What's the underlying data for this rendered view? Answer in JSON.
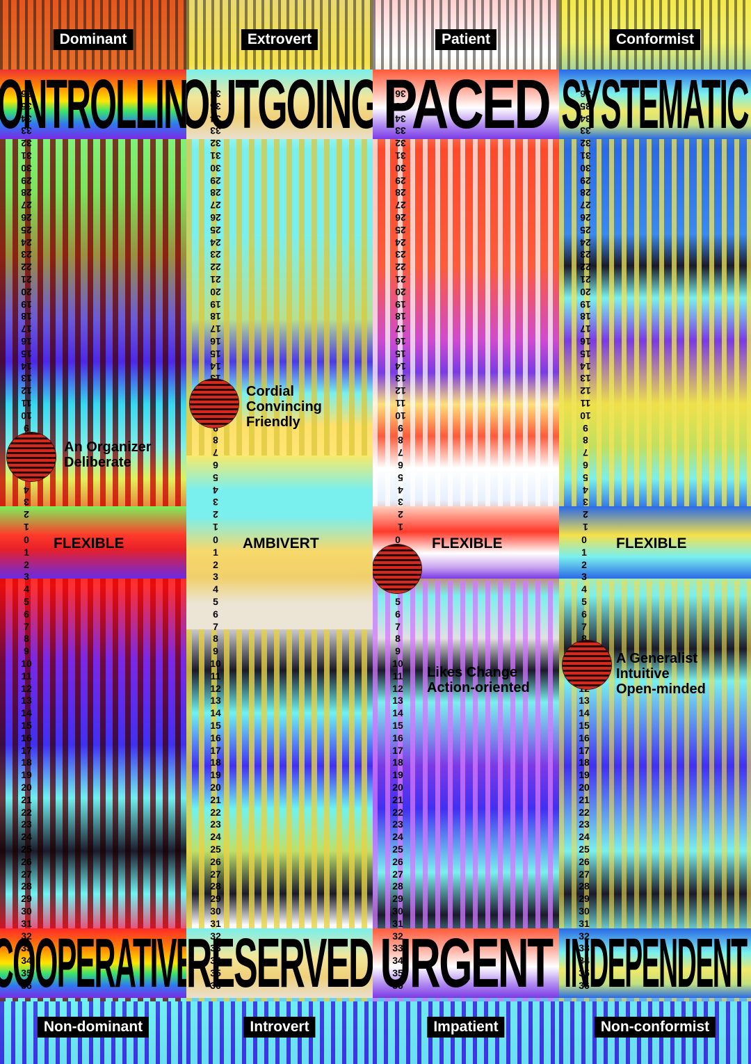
{
  "columns": [
    {
      "top_trait": "Dominant",
      "top_word": "CONTROLLING",
      "middle_label": "FLEXIBLE",
      "bottom_word": "COOPERATIVE",
      "bottom_trait": "Non-dominant",
      "notes": [
        "An Organizer",
        "Deliberate"
      ]
    },
    {
      "top_trait": "Extrovert",
      "top_word": "OUTGOING",
      "middle_label": "AMBIVERT",
      "bottom_word": "RESERVED",
      "bottom_trait": "Introvert",
      "notes": [
        "Cordial",
        "Convincing",
        "Friendly"
      ]
    },
    {
      "top_trait": "Patient",
      "top_word": "PACED",
      "middle_label": "FLEXIBLE",
      "bottom_word": "URGENT",
      "bottom_trait": "Impatient",
      "notes": [
        "Likes Change",
        "Action-oriented"
      ]
    },
    {
      "top_trait": "Conformist",
      "top_word": "SYSTEMATIC",
      "middle_label": "FLEXIBLE",
      "bottom_word": "INDEPENDENT",
      "bottom_trait": "Non-conformist",
      "notes": [
        "A Generalist",
        "Intuitive",
        "Open-minded"
      ]
    }
  ],
  "scale": {
    "upper_max": 36,
    "lower_max": 36
  },
  "marker_positions": [
    {
      "column": 0,
      "scale": "upper",
      "value": 6
    },
    {
      "column": 1,
      "scale": "upper",
      "value": 11
    },
    {
      "column": 2,
      "scale": "lower",
      "value": 2
    },
    {
      "column": 3,
      "scale": "lower",
      "value": 10
    }
  ],
  "colors": {
    "ink": "#000000",
    "tag_background": "#000000",
    "tag_text": "#ffffff",
    "marker_dark": "#2a0505",
    "marker_red": "#d42a1e"
  }
}
